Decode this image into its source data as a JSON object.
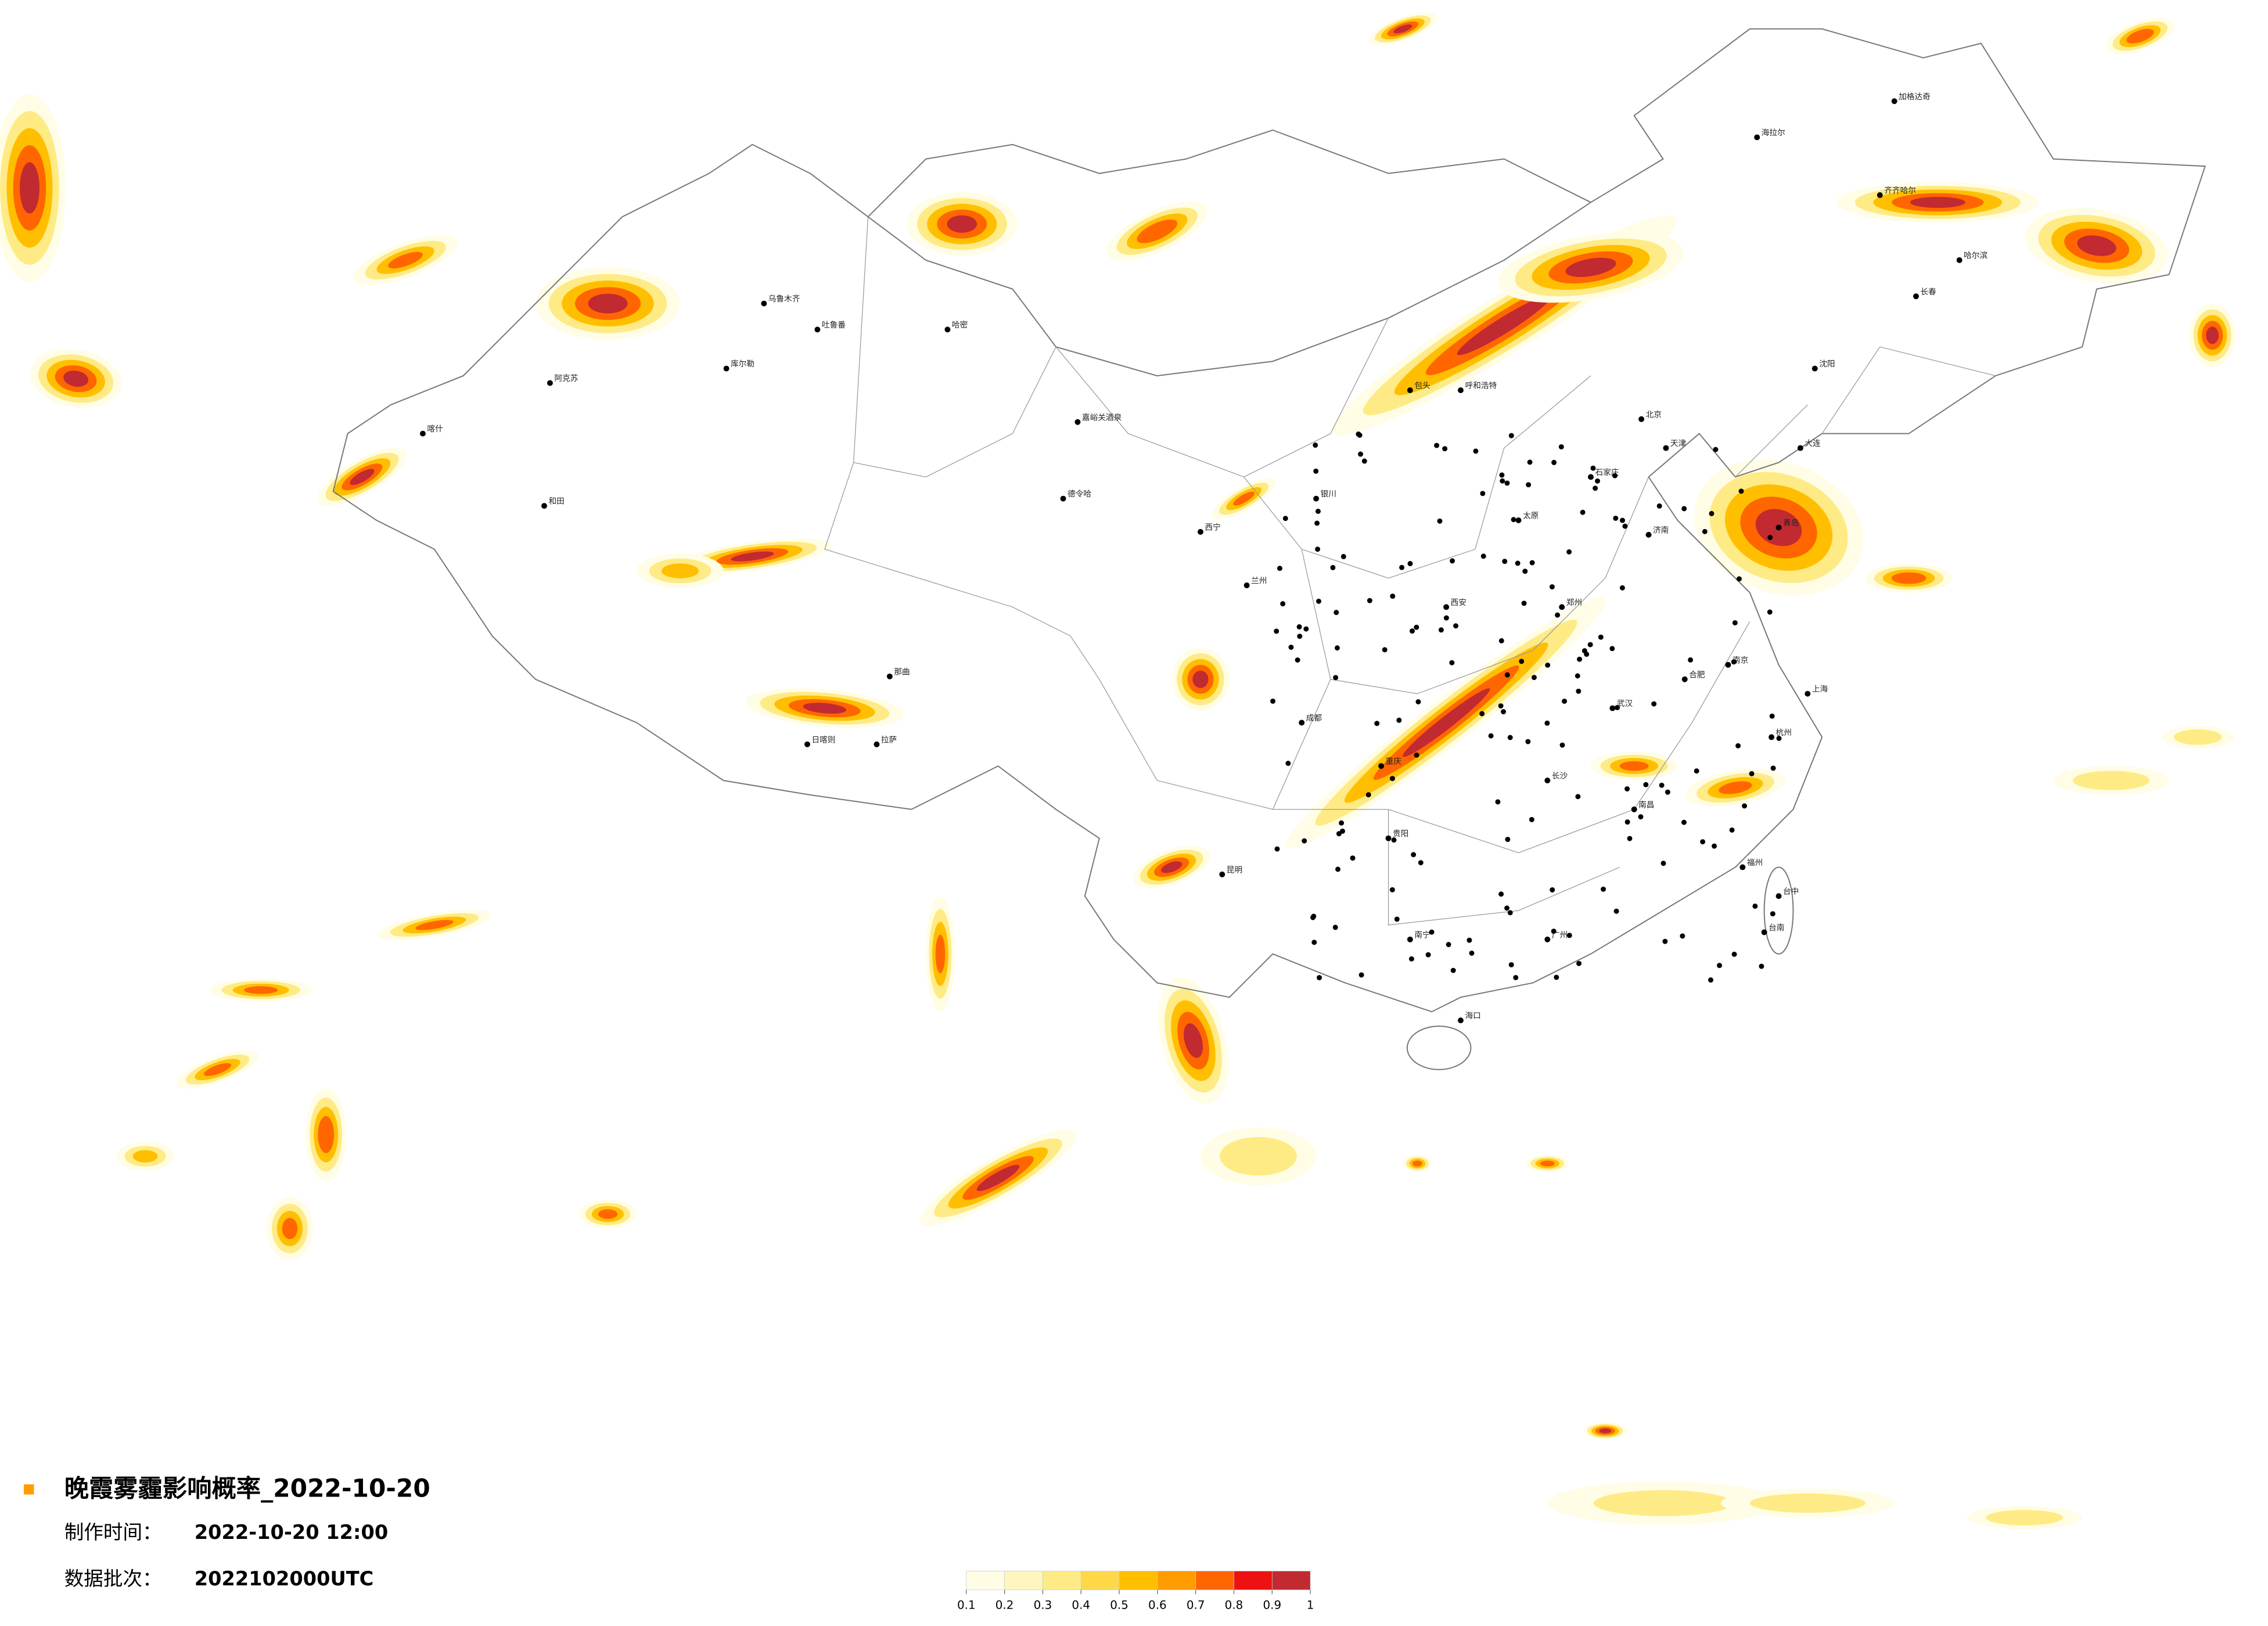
{
  "title": "晚霞雾霾影响概率_2022-10-20",
  "made_label": "制作时间：",
  "made_time": "2022-10-20 12:00",
  "batch_label": "数据批次：",
  "batch": "2022102000UTC",
  "legend": {
    "ticks": [
      0.1,
      0.2,
      0.3,
      0.4,
      0.5,
      0.6,
      0.7,
      0.8,
      0.9,
      1
    ],
    "colors": [
      "#fffde6",
      "#fff6bd",
      "#ffeb85",
      "#ffd84a",
      "#ffbf00",
      "#ff9c00",
      "#ff6600",
      "#ee1111",
      "#c02a30"
    ]
  },
  "cities": [
    "阿克苏",
    "和田",
    "喀什",
    "乌鲁木齐",
    "吐鲁番",
    "库尔勒",
    "哈密",
    "拉萨",
    "日喀则",
    "那曲",
    "嘉峪关酒泉",
    "德令哈",
    "西宁",
    "兰州",
    "银川",
    "呼和浩特",
    "包头",
    "北京",
    "天津",
    "石家庄",
    "太原",
    "济南",
    "郑州",
    "西安",
    "成都",
    "重庆",
    "贵阳",
    "昆明",
    "南宁",
    "广州",
    "长沙",
    "武汉",
    "南昌",
    "合肥",
    "南京",
    "上海",
    "杭州",
    "福州",
    "台中",
    "台南",
    "海口",
    "沈阳",
    "长春",
    "哈尔滨",
    "齐齐哈尔",
    "加格达奇",
    "海拉尔",
    "大连",
    "青岛"
  ]
}
